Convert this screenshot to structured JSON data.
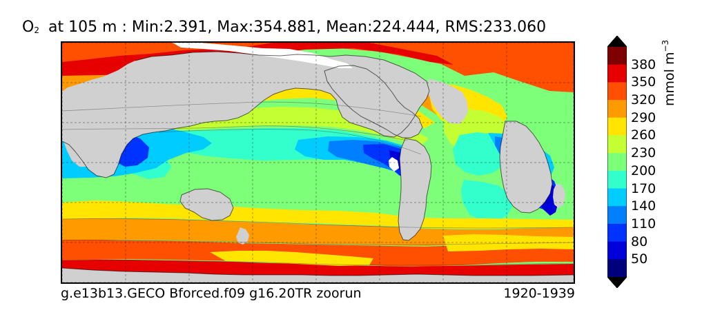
{
  "title": {
    "variable": "O",
    "subscript": "2",
    "text": "at 105 m : Min:2.391, Max:354.881, Mean:224.444, RMS:233.060"
  },
  "footer": {
    "left": "g.e13b13.GECO Bforced.f09 g16.20TR zoorun",
    "right": "1920-1939"
  },
  "colorbar": {
    "unit_text": "mmol m",
    "unit_exponent": "−3",
    "ticks": [
      "50",
      "80",
      "110",
      "140",
      "170",
      "200",
      "230",
      "260",
      "290",
      "320",
      "350",
      "380"
    ],
    "colors": [
      "#00007f",
      "#0000d8",
      "#0033ff",
      "#007fff",
      "#00ccff",
      "#33ffcc",
      "#7dff7a",
      "#c4ff33",
      "#ffe500",
      "#ff9a00",
      "#ff4f00",
      "#e60000",
      "#7f0000"
    ],
    "under_color": "#000000",
    "over_color": "#000000"
  },
  "map": {
    "land_color": "#d0d0d0",
    "missing_color": "#ffffff",
    "grid": true,
    "grid_style": "dashed"
  }
}
